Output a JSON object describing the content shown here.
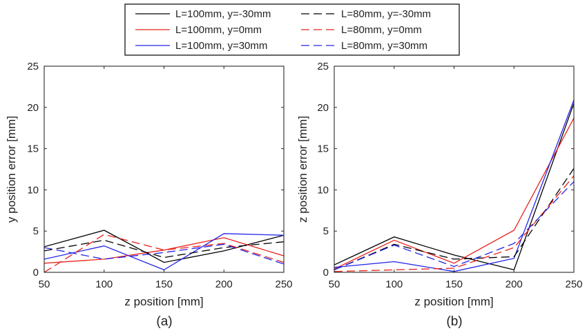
{
  "legend": {
    "placement": "top-center",
    "entries": [
      {
        "label": "L=100mm, y=-30mm",
        "color": "#000000",
        "dash": "solid"
      },
      {
        "label": "L=100mm, y=0mm",
        "color": "#e8201a",
        "dash": "solid"
      },
      {
        "label": "L=100mm, y=30mm",
        "color": "#2323e8",
        "dash": "solid"
      },
      {
        "label": "L=80mm, y=-30mm",
        "color": "#000000",
        "dash": "dashed"
      },
      {
        "label": "L=80mm, y=0mm",
        "color": "#e8201a",
        "dash": "dashed"
      },
      {
        "label": "L=80mm, y=30mm",
        "color": "#2323e8",
        "dash": "dashed"
      }
    ]
  },
  "chart_data": [
    {
      "type": "line",
      "panel_label": "(a)",
      "xlabel": "z position [mm]",
      "ylabel": "y position error [mm]",
      "xlim": [
        50,
        250
      ],
      "ylim": [
        0,
        25
      ],
      "x": [
        50,
        100,
        150,
        200,
        250
      ],
      "xticks": [
        "50",
        "100",
        "150",
        "200",
        "250"
      ],
      "yticks": [
        "0",
        "5",
        "10",
        "15",
        "20",
        "25"
      ],
      "grid": false,
      "series": [
        {
          "name": "L=100mm, y=-30mm",
          "color": "#000000",
          "dash": "solid",
          "values": [
            3.1,
            5.1,
            1.2,
            2.6,
            4.5
          ]
        },
        {
          "name": "L=100mm, y=0mm",
          "color": "#e8201a",
          "dash": "solid",
          "values": [
            1.1,
            1.6,
            2.7,
            4.2,
            2.0
          ]
        },
        {
          "name": "L=100mm, y=30mm",
          "color": "#2323e8",
          "dash": "solid",
          "values": [
            1.6,
            3.2,
            0.3,
            4.7,
            4.5
          ]
        },
        {
          "name": "L=80mm, y=-30mm",
          "color": "#000000",
          "dash": "dashed",
          "values": [
            2.6,
            3.9,
            1.8,
            3.0,
            3.7
          ]
        },
        {
          "name": "L=80mm, y=0mm",
          "color": "#e8201a",
          "dash": "dashed",
          "values": [
            0.0,
            4.6,
            2.7,
            3.5,
            1.2
          ]
        },
        {
          "name": "L=80mm, y=30mm",
          "color": "#2323e8",
          "dash": "dashed",
          "values": [
            3.0,
            1.6,
            2.4,
            3.4,
            1.0
          ]
        }
      ]
    },
    {
      "type": "line",
      "panel_label": "(b)",
      "xlabel": "z position [mm]",
      "ylabel": "z position error [mm]",
      "xlim": [
        50,
        250
      ],
      "ylim": [
        0,
        25
      ],
      "x": [
        50,
        100,
        150,
        200,
        250
      ],
      "xticks": [
        "50",
        "100",
        "150",
        "200",
        "250"
      ],
      "yticks": [
        "0",
        "5",
        "10",
        "15",
        "20",
        "25"
      ],
      "grid": false,
      "series": [
        {
          "name": "L=100mm, y=-30mm",
          "color": "#000000",
          "dash": "solid",
          "values": [
            0.9,
            4.3,
            2.1,
            0.3,
            20.5
          ]
        },
        {
          "name": "L=100mm, y=0mm",
          "color": "#e8201a",
          "dash": "solid",
          "values": [
            0.4,
            3.9,
            1.1,
            5.1,
            18.7
          ]
        },
        {
          "name": "L=100mm, y=30mm",
          "color": "#2323e8",
          "dash": "solid",
          "values": [
            0.6,
            1.3,
            0.1,
            1.7,
            20.9
          ]
        },
        {
          "name": "L=80mm, y=-30mm",
          "color": "#000000",
          "dash": "dashed",
          "values": [
            0.3,
            3.4,
            1.6,
            1.9,
            12.6
          ]
        },
        {
          "name": "L=80mm, y=0mm",
          "color": "#e8201a",
          "dash": "dashed",
          "values": [
            0.1,
            0.3,
            0.5,
            3.0,
            11.7
          ]
        },
        {
          "name": "L=80mm, y=30mm",
          "color": "#2323e8",
          "dash": "dashed",
          "values": [
            0.3,
            3.3,
            0.7,
            3.5,
            11.0
          ]
        }
      ]
    }
  ]
}
